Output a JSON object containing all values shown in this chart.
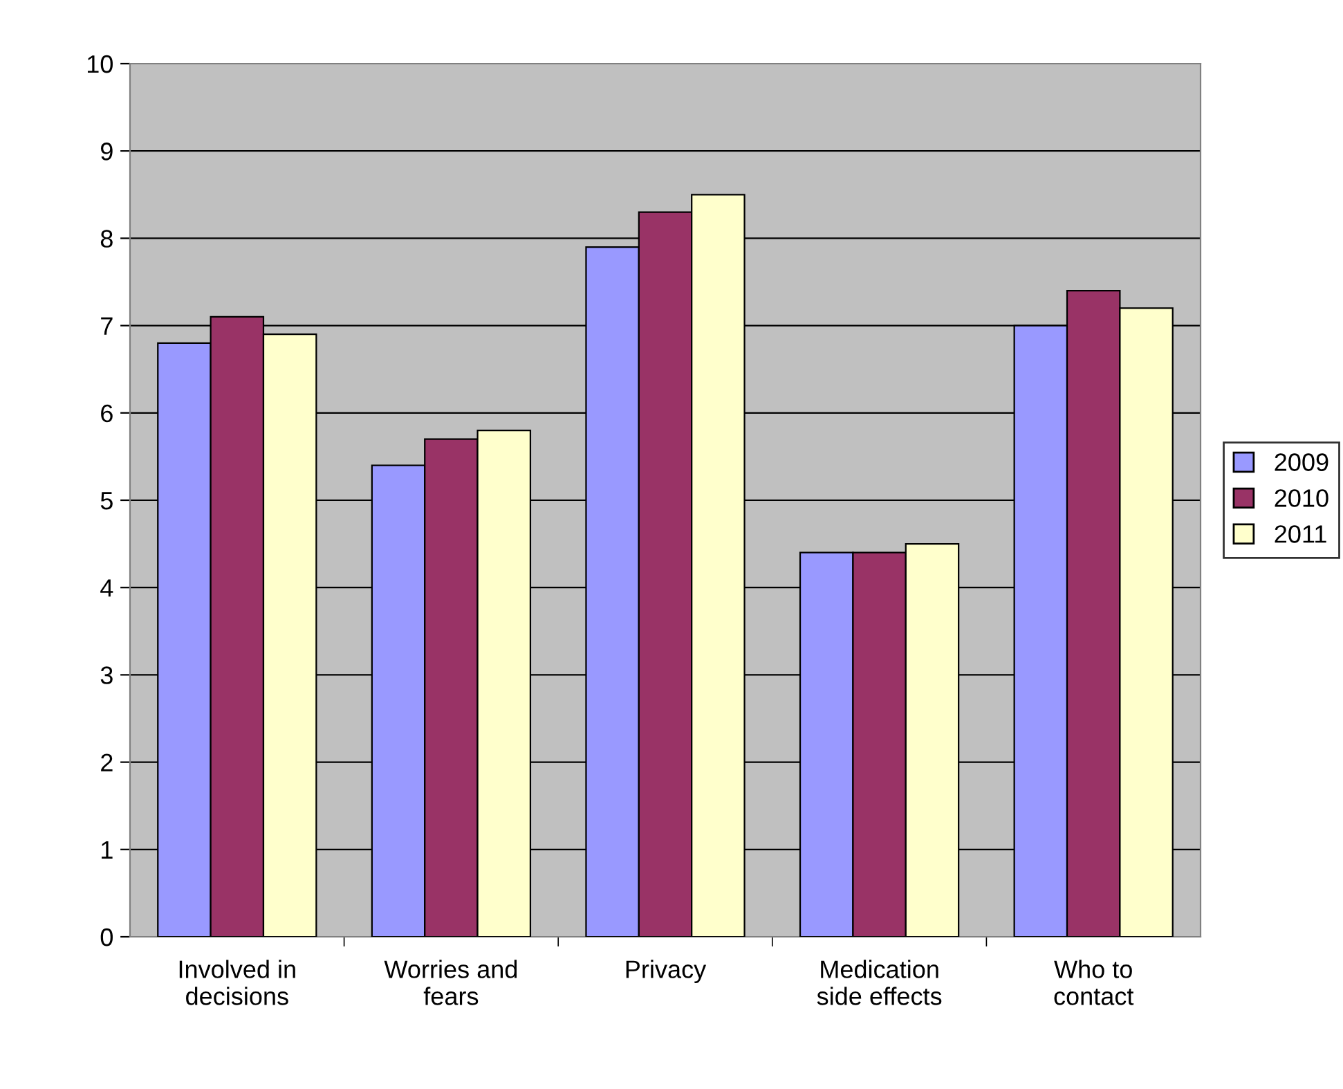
{
  "chart_data": {
    "type": "bar",
    "categories": [
      "Involved in\ndecisions",
      "Worries and\nfears",
      "Privacy",
      "Medication\nside effects",
      "Who to\ncontact"
    ],
    "series": [
      {
        "name": "2009",
        "color": "#9999ff",
        "values": [
          6.8,
          5.4,
          7.9,
          4.4,
          7.0
        ]
      },
      {
        "name": "2010",
        "color": "#993366",
        "values": [
          7.1,
          5.7,
          8.3,
          4.4,
          7.4
        ]
      },
      {
        "name": "2011",
        "color": "#ffffcc",
        "values": [
          6.9,
          5.8,
          8.5,
          4.5,
          7.2
        ]
      }
    ],
    "ylim": [
      0,
      10
    ],
    "yticks": [
      0,
      1,
      2,
      3,
      4,
      5,
      6,
      7,
      8,
      9,
      10
    ],
    "grid": "y",
    "legend": "right"
  }
}
